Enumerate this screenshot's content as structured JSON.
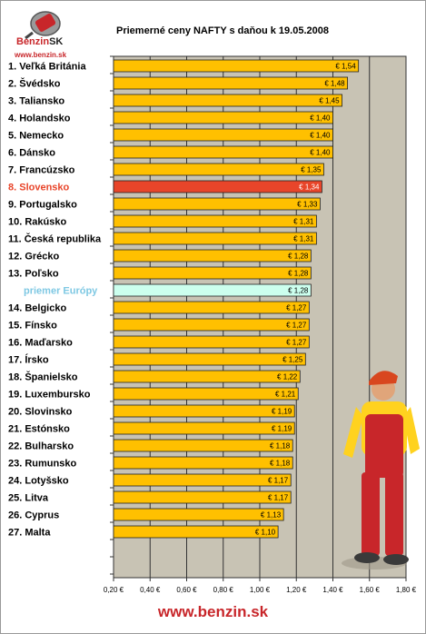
{
  "logo": {
    "brand": "Benzin",
    "brand_suffix": "SK",
    "url": "www.benzin.sk"
  },
  "footer": {
    "url": "www.benzin.sk"
  },
  "colors": {
    "plot_bg": "#c8c3b4",
    "bar": "#ffc000",
    "bar_highlight": "#e8452a",
    "bar_average": "#ccffee",
    "label_highlight": "#e8452a",
    "label_average": "#7ec8e3",
    "brand": "#c8262a"
  },
  "chart_data": {
    "type": "bar",
    "orientation": "horizontal",
    "title": "Priemerné ceny NAFTY s daňou k 19.05.2008",
    "categories": [
      "1. Veľká Británia",
      "2. Švédsko",
      "3. Taliansko",
      "4. Holandsko",
      "5. Nemecko",
      "6. Dánsko",
      "7. Francúzsko",
      "8. Slovensko",
      "9. Portugalsko",
      "10. Rakúsko",
      "11. Česká republika",
      "12. Grécko",
      "13. Poľsko",
      "priemer Európy",
      "14. Belgicko",
      "15. Fínsko",
      "16. Maďarsko",
      "17. Írsko",
      "18. Španielsko",
      "19. Luxembursko",
      "20. Slovinsko",
      "21. Estónsko",
      "22. Bulharsko",
      "23. Rumunsko",
      "24. Lotyšsko",
      "25. Litva",
      "26. Cyprus",
      "27. Malta"
    ],
    "values": [
      1.54,
      1.48,
      1.45,
      1.4,
      1.4,
      1.4,
      1.35,
      1.34,
      1.33,
      1.31,
      1.31,
      1.28,
      1.28,
      1.28,
      1.27,
      1.27,
      1.27,
      1.25,
      1.22,
      1.21,
      1.19,
      1.19,
      1.18,
      1.18,
      1.17,
      1.17,
      1.13,
      1.1
    ],
    "value_labels": [
      "€ 1,54",
      "€ 1,48",
      "€ 1,45",
      "€ 1,40",
      "€ 1,40",
      "€ 1,40",
      "€ 1,35",
      "€ 1,34",
      "€ 1,33",
      "€ 1,31",
      "€ 1,31",
      "€ 1,28",
      "€ 1,28",
      "€ 1,28",
      "€ 1,27",
      "€ 1,27",
      "€ 1,27",
      "€ 1,25",
      "€ 1,22",
      "€ 1,21",
      "€ 1,19",
      "€ 1,19",
      "€ 1,18",
      "€ 1,18",
      "€ 1,17",
      "€ 1,17",
      "€ 1,13",
      "€ 1,10"
    ],
    "highlight_index": 7,
    "average_index": 13,
    "xlim": [
      0.2,
      1.8
    ],
    "x_ticks": [
      0.2,
      0.4,
      0.6,
      0.8,
      1.0,
      1.2,
      1.4,
      1.6,
      1.8
    ],
    "x_tick_labels": [
      "0,20 €",
      "0,40 €",
      "0,60 €",
      "0,80 €",
      "1,00 €",
      "1,20 €",
      "1,40 €",
      "1,60 €",
      "1,80 €"
    ],
    "grid": true
  }
}
